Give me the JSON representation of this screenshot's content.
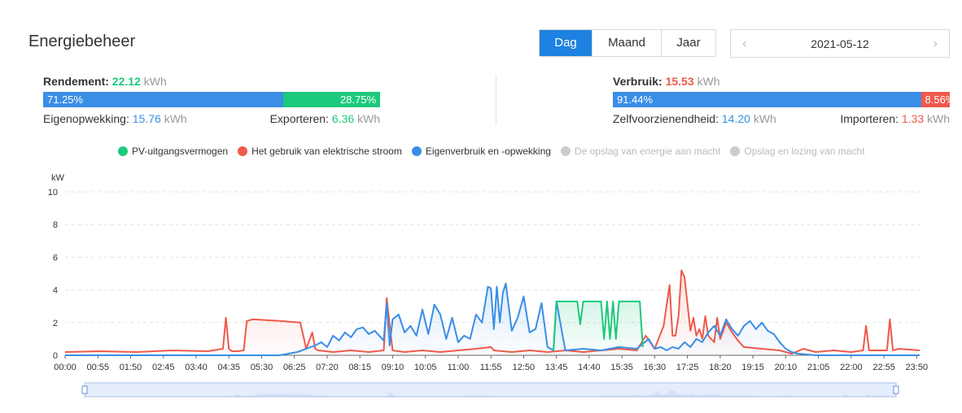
{
  "header": {
    "title": "Energiebeheer"
  },
  "period_tabs": [
    {
      "label": "Dag",
      "active": true
    },
    {
      "label": "Maand",
      "active": false
    },
    {
      "label": "Jaar",
      "active": false
    }
  ],
  "date_picker": {
    "value": "2021-05-12",
    "prev_icon": "chevron-left-icon",
    "next_icon": "chevron-right-icon"
  },
  "left_panel": {
    "label": "Rendement:",
    "value": "22.12",
    "unit": "kWh",
    "bar": {
      "left_pct": "71.25%",
      "right_pct": "28.75%",
      "left_fraction": 0.7125
    },
    "sub_left": {
      "label": "Eigenopwekking:",
      "value": "15.76",
      "unit": "kWh"
    },
    "sub_right": {
      "label": "Exporteren:",
      "value": "6.36",
      "unit": "kWh"
    }
  },
  "right_panel": {
    "label": "Verbruik:",
    "value": "15.53",
    "unit": "kWh",
    "bar": {
      "left_pct": "91.44%",
      "right_pct": "8.56%",
      "left_fraction": 0.9144
    },
    "sub_left": {
      "label": "Zelfvoorzienendheid:",
      "value": "14.20",
      "unit": "kWh"
    },
    "sub_right": {
      "label": "Importeren:",
      "value": "1.33",
      "unit": "kWh"
    }
  },
  "colors": {
    "blue": "#3a8ee6",
    "green": "#1dc97c",
    "red": "#ee5a4b",
    "grey": "#cccccc",
    "accent": "#1d82e1"
  },
  "chart_data": {
    "type": "line",
    "ylabel": "kW",
    "ylim": [
      0,
      10
    ],
    "yticks": [
      0,
      2,
      4,
      6,
      8,
      10
    ],
    "x_range": [
      "00:00",
      "23:55"
    ],
    "xticks": [
      "00:00",
      "00:55",
      "01:50",
      "02:45",
      "03:40",
      "04:35",
      "05:30",
      "06:25",
      "07:20",
      "08:15",
      "09:10",
      "10:05",
      "11:00",
      "11:55",
      "12:50",
      "13:45",
      "14:40",
      "15:35",
      "16:30",
      "17:25",
      "18:20",
      "19:15",
      "20:10",
      "21:05",
      "22:00",
      "22:55",
      "23:50"
    ],
    "grid": "horizontal dashed",
    "legend_position": "top",
    "legend": [
      {
        "name": "PV-uitgangsvermogen",
        "color": "#1dc97c",
        "active": true
      },
      {
        "name": "Het gebruik van elektrische stroom",
        "color": "#ee5a4b",
        "active": true
      },
      {
        "name": "Eigenverbruik en -opwekking",
        "color": "#3a8ee6",
        "active": true
      },
      {
        "name": "De opslag van energie aan macht",
        "color": "#cccccc",
        "active": false
      },
      {
        "name": "Opslag en lozing van macht",
        "color": "#cccccc",
        "active": false
      }
    ],
    "series": [
      {
        "name": "Het gebruik van elektrische stroom",
        "color": "#ee5a4b",
        "x": [
          "00:00",
          "01:00",
          "02:00",
          "03:00",
          "04:00",
          "04:25",
          "04:30",
          "04:35",
          "04:40",
          "04:50",
          "05:00",
          "05:05",
          "05:15",
          "06:00",
          "06:35",
          "06:45",
          "06:55",
          "07:00",
          "07:05",
          "07:30",
          "08:00",
          "08:30",
          "08:55",
          "09:00",
          "09:10",
          "09:30",
          "10:00",
          "10:30",
          "11:00",
          "11:30",
          "11:55",
          "12:00",
          "12:30",
          "13:00",
          "13:30",
          "14:00",
          "14:30",
          "15:00",
          "15:30",
          "16:00",
          "16:15",
          "16:30",
          "16:45",
          "16:55",
          "17:00",
          "17:05",
          "17:10",
          "17:15",
          "17:20",
          "17:30",
          "17:35",
          "17:40",
          "17:45",
          "17:50",
          "17:55",
          "18:00",
          "18:10",
          "18:15",
          "18:20",
          "18:30",
          "18:40",
          "18:50",
          "19:00",
          "19:30",
          "20:00",
          "20:20",
          "20:40",
          "21:00",
          "21:30",
          "22:00",
          "22:20",
          "22:25",
          "22:30",
          "22:40",
          "23:00",
          "23:05",
          "23:10",
          "23:20",
          "23:55"
        ],
        "y": [
          0.2,
          0.25,
          0.2,
          0.3,
          0.25,
          0.4,
          2.3,
          0.4,
          0.25,
          0.25,
          0.3,
          2.1,
          2.2,
          2.1,
          2.0,
          0.4,
          1.4,
          0.4,
          0.3,
          0.2,
          0.3,
          0.2,
          0.3,
          3.5,
          0.3,
          0.2,
          0.3,
          0.2,
          0.3,
          0.4,
          0.5,
          0.3,
          0.2,
          0.3,
          0.2,
          0.3,
          0.2,
          0.3,
          0.4,
          0.3,
          1.2,
          0.4,
          1.8,
          4.3,
          1.2,
          1.2,
          2.4,
          5.2,
          4.8,
          1.5,
          2.3,
          1.2,
          1.6,
          1.0,
          2.4,
          1.2,
          0.8,
          2.3,
          1.0,
          2.0,
          1.4,
          0.9,
          0.5,
          0.4,
          0.3,
          0.1,
          0.4,
          0.2,
          0.3,
          0.2,
          0.3,
          1.8,
          0.3,
          0.3,
          0.3,
          2.2,
          0.3,
          0.4,
          0.3
        ]
      },
      {
        "name": "Eigenverbruik en -opwekking",
        "color": "#3a8ee6",
        "x": [
          "00:00",
          "05:00",
          "06:00",
          "06:30",
          "07:00",
          "07:10",
          "07:20",
          "07:30",
          "07:40",
          "07:50",
          "08:00",
          "08:10",
          "08:20",
          "08:30",
          "08:40",
          "08:55",
          "09:00",
          "09:05",
          "09:10",
          "09:20",
          "09:30",
          "09:40",
          "09:50",
          "10:00",
          "10:10",
          "10:20",
          "10:30",
          "10:40",
          "10:50",
          "11:00",
          "11:10",
          "11:20",
          "11:30",
          "11:40",
          "11:50",
          "11:55",
          "12:00",
          "12:05",
          "12:10",
          "12:15",
          "12:20",
          "12:30",
          "12:40",
          "12:50",
          "13:00",
          "13:10",
          "13:20",
          "13:30",
          "13:40",
          "13:45",
          "14:00",
          "14:30",
          "15:00",
          "15:30",
          "16:00",
          "16:20",
          "16:30",
          "16:40",
          "16:50",
          "17:00",
          "17:10",
          "17:20",
          "17:30",
          "17:40",
          "17:50",
          "18:00",
          "18:10",
          "18:20",
          "18:30",
          "18:40",
          "18:50",
          "19:00",
          "19:10",
          "19:20",
          "19:30",
          "19:40",
          "19:50",
          "20:00",
          "20:10",
          "20:20",
          "20:30",
          "21:00",
          "23:55"
        ],
        "y": [
          0,
          0,
          0,
          0.2,
          0.6,
          0.8,
          0.5,
          1.2,
          0.9,
          1.4,
          1.1,
          1.6,
          1.7,
          1.3,
          1.5,
          0.9,
          3.2,
          0.6,
          2.2,
          2.5,
          1.4,
          1.8,
          1.2,
          2.8,
          1.3,
          3.1,
          2.5,
          1.0,
          2.3,
          0.8,
          1.2,
          1.0,
          2.5,
          2.0,
          4.2,
          4.1,
          1.6,
          4.2,
          2.0,
          3.8,
          4.4,
          1.5,
          2.3,
          3.6,
          1.4,
          1.6,
          3.2,
          0.5,
          0.3,
          3.3,
          0.3,
          0.4,
          0.3,
          0.5,
          0.4,
          1.0,
          0.4,
          0.5,
          0.3,
          0.5,
          0.4,
          0.8,
          0.5,
          1.0,
          0.8,
          1.4,
          1.8,
          1.2,
          2.2,
          1.6,
          1.2,
          1.8,
          2.1,
          1.6,
          2.0,
          1.5,
          1.3,
          0.8,
          0.4,
          0.2,
          0.1,
          0,
          0
        ]
      },
      {
        "name": "PV-uitgangsvermogen",
        "color": "#1dc97c",
        "x": [
          "13:40",
          "13:45",
          "13:55",
          "14:00",
          "14:10",
          "14:20",
          "14:25",
          "14:30",
          "14:40",
          "14:50",
          "15:00",
          "15:05",
          "15:10",
          "15:15",
          "15:20",
          "15:25",
          "15:30",
          "15:40",
          "15:50",
          "16:00",
          "16:05",
          "16:10"
        ],
        "y": [
          0.3,
          3.3,
          3.3,
          3.3,
          3.3,
          3.3,
          1.9,
          3.3,
          3.3,
          3.3,
          3.3,
          1.0,
          3.3,
          1.0,
          3.3,
          1.0,
          3.3,
          3.3,
          3.3,
          3.3,
          3.3,
          0.5
        ]
      }
    ],
    "navigator": {
      "start_fraction": 0,
      "end_fraction": 1
    }
  }
}
